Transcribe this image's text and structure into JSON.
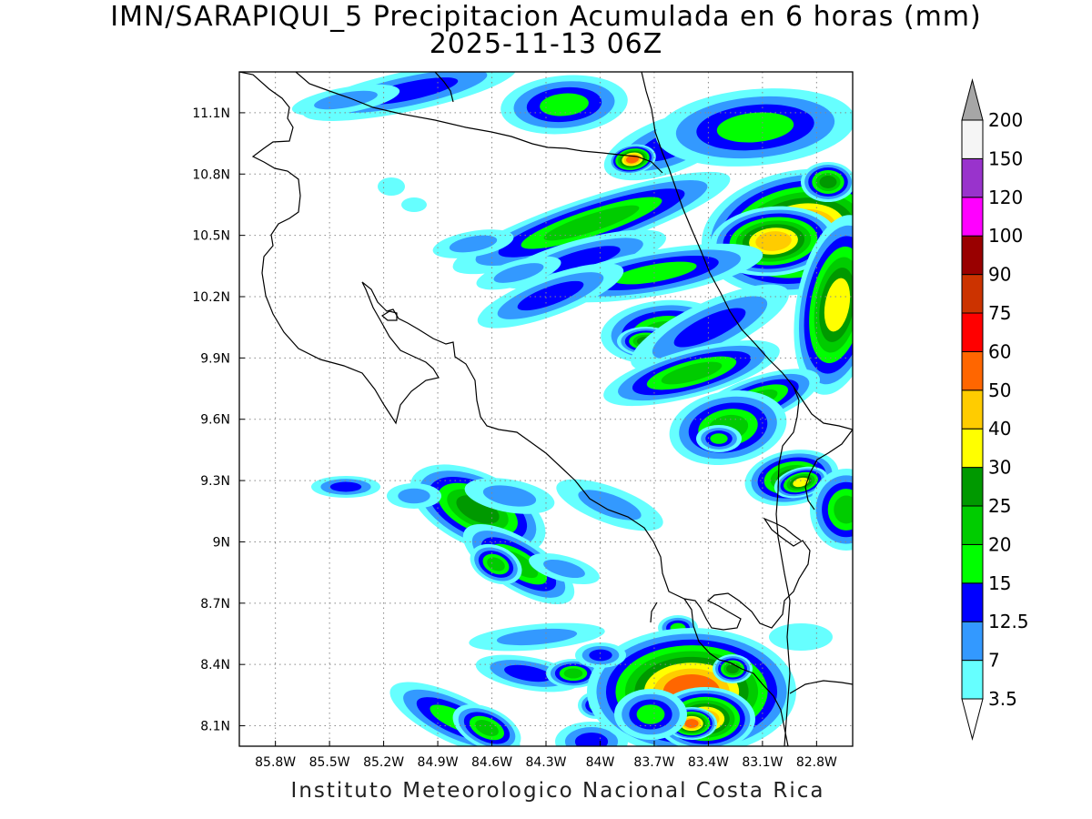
{
  "title": {
    "line1": "IMN/SARAPIQUI_5 Precipitacion Acumulada en 6 horas (mm)",
    "line2": "2025-11-13 06Z"
  },
  "footer": "Instituto Meteorologico Nacional Costa Rica",
  "map": {
    "lon_range": [
      -86.0,
      -82.6
    ],
    "lat_range": [
      8.0,
      11.3
    ],
    "lon_ticks": [
      {
        "value": -85.8,
        "label": "85.8W"
      },
      {
        "value": -85.5,
        "label": "85.5W"
      },
      {
        "value": -85.2,
        "label": "85.2W"
      },
      {
        "value": -84.9,
        "label": "84.9W"
      },
      {
        "value": -84.6,
        "label": "84.6W"
      },
      {
        "value": -84.3,
        "label": "84.3W"
      },
      {
        "value": -84.0,
        "label": "84W"
      },
      {
        "value": -83.7,
        "label": "83.7W"
      },
      {
        "value": -83.4,
        "label": "83.4W"
      },
      {
        "value": -83.1,
        "label": "83.1W"
      },
      {
        "value": -82.8,
        "label": "82.8W"
      }
    ],
    "lat_ticks": [
      {
        "value": 8.1,
        "label": "8.1N"
      },
      {
        "value": 8.4,
        "label": "8.4N"
      },
      {
        "value": 8.7,
        "label": "8.7N"
      },
      {
        "value": 9.0,
        "label": "9N"
      },
      {
        "value": 9.3,
        "label": "9.3N"
      },
      {
        "value": 9.6,
        "label": "9.6N"
      },
      {
        "value": 9.9,
        "label": "9.9N"
      },
      {
        "value": 10.2,
        "label": "10.2N"
      },
      {
        "value": 10.5,
        "label": "10.5N"
      },
      {
        "value": 10.8,
        "label": "10.8N"
      },
      {
        "value": 11.1,
        "label": "11.1N"
      }
    ],
    "grid": "dotted"
  },
  "colorbar": {
    "levels": [
      "3.5",
      "7",
      "12.5",
      "15",
      "20",
      "25",
      "30",
      "40",
      "50",
      "60",
      "75",
      "90",
      "100",
      "120",
      "150",
      "200"
    ],
    "colors": [
      "#66ffff",
      "#3399ff",
      "#0000ff",
      "#00ff00",
      "#00cc00",
      "#009900",
      "#ffff00",
      "#ffcc00",
      "#ff6600",
      "#ff0000",
      "#cc3300",
      "#990000",
      "#ff00ff",
      "#9933cc",
      "#f5f5f5"
    ],
    "over_color": "#a6a6a6",
    "under_color": "#ffffff"
  },
  "fields": {
    "legend_style": "filled contours",
    "level_colors": {
      "3.5": "#66ffff",
      "7": "#3399ff",
      "12.5": "#0000ff",
      "15": "#00ff00",
      "20": "#00cc00",
      "25": "#009900",
      "30": "#ffff00",
      "40": "#ffcc00",
      "50": "#ff6600",
      "60": "#ff0000"
    }
  }
}
